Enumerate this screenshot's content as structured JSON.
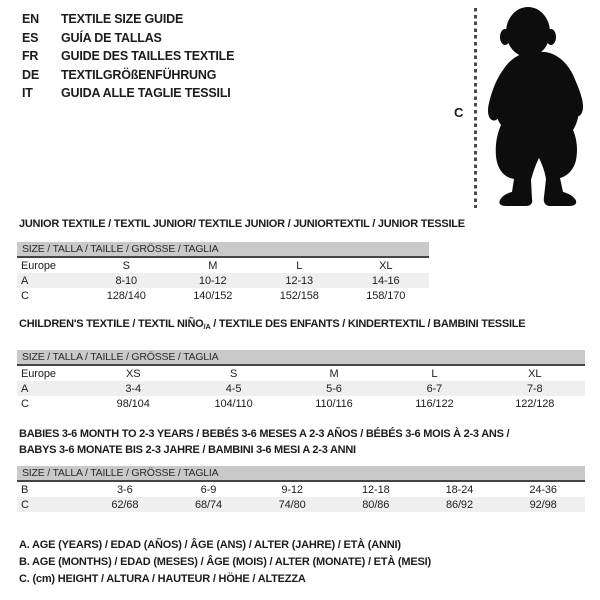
{
  "languages": [
    {
      "code": "EN",
      "text": "TEXTILE SIZE GUIDE"
    },
    {
      "code": "ES",
      "text": "GUÍA DE TALLAS"
    },
    {
      "code": "FR",
      "text": "GUIDE DES TAILLES TEXTILE"
    },
    {
      "code": "DE",
      "text": "TEXTILGRÖßENFÜHRUNG"
    },
    {
      "code": "IT",
      "text": "GUIDA ALLE TAGLIE TESSILI"
    }
  ],
  "figure": {
    "label": "C",
    "silhouette": "baby-silhouette"
  },
  "sections": [
    {
      "id": "junior",
      "heading": "JUNIOR TEXTILE / TEXTIL JUNIOR/ TEXTILE JUNIOR / JUNIORTEXTIL / JUNIOR TESSILE",
      "size_header": "SIZE / TALLA / TAILLE / GRÖSSE / TAGLIA",
      "rows": [
        {
          "label": "Europe",
          "values": [
            "S",
            "M",
            "L",
            "XL"
          ]
        },
        {
          "label": "A",
          "values": [
            "8-10",
            "10-12",
            "12-13",
            "14-16"
          ]
        },
        {
          "label": "C",
          "values": [
            "128/140",
            "140/152",
            "152/158",
            "158/170"
          ]
        }
      ]
    },
    {
      "id": "children",
      "heading_pre": "CHILDREN'S TEXTILE / TEXTIL NIÑO",
      "heading_sub": "/A",
      "heading_post": " / TEXTILE DES ENFANTS / KINDERTEXTIL / BAMBINI TESSILE",
      "size_header": "SIZE / TALLA / TAILLE / GRÖSSE / TAGLIA",
      "rows": [
        {
          "label": "Europe",
          "values": [
            "XS",
            "S",
            "M",
            "L",
            "XL"
          ]
        },
        {
          "label": "A",
          "values": [
            "3-4",
            "4-5",
            "5-6",
            "6-7",
            "7-8"
          ]
        },
        {
          "label": "C",
          "values": [
            "98/104",
            "104/110",
            "110/116",
            "116/122",
            "122/128"
          ]
        }
      ]
    },
    {
      "id": "babies",
      "heading_line1": "BABIES 3-6 MONTH TO 2-3 YEARS / BEBÉS 3-6 MESES A 2-3 AÑOS / BÉBÉS 3-6 MOIS À 2-3 ANS /",
      "heading_line2": "BABYS 3-6 MONATE BIS 2-3 JAHRE / BAMBINI 3-6 MESI A 2-3 ANNI",
      "size_header": "SIZE / TALLA / TAILLE / GRÖSSE / TAGLIA",
      "rows": [
        {
          "label": "B",
          "values": [
            "3-6",
            "6-9",
            "9-12",
            "12-18",
            "18-24",
            "24-36"
          ]
        },
        {
          "label": "C",
          "values": [
            "62/68",
            "68/74",
            "74/80",
            "80/86",
            "86/92",
            "92/98"
          ]
        }
      ]
    }
  ],
  "notes": [
    "A. AGE (YEARS) / EDAD (AÑOS) / ÂGE (ANS) / ALTER (JAHRE) / ETÀ (ANNI)",
    "B. AGE (MONTHS) / EDAD (MESES) / ÂGE (MOIS) / ALTER (MONATE) / ETÀ (MESI)",
    "C. (cm) HEIGHT / ALTURA / HAUTEUR / HÖHE / ALTEZZA"
  ],
  "colors": {
    "header_bar": "#c9c9c9",
    "row_alt": "#efefef",
    "text": "#1c1c1c"
  }
}
